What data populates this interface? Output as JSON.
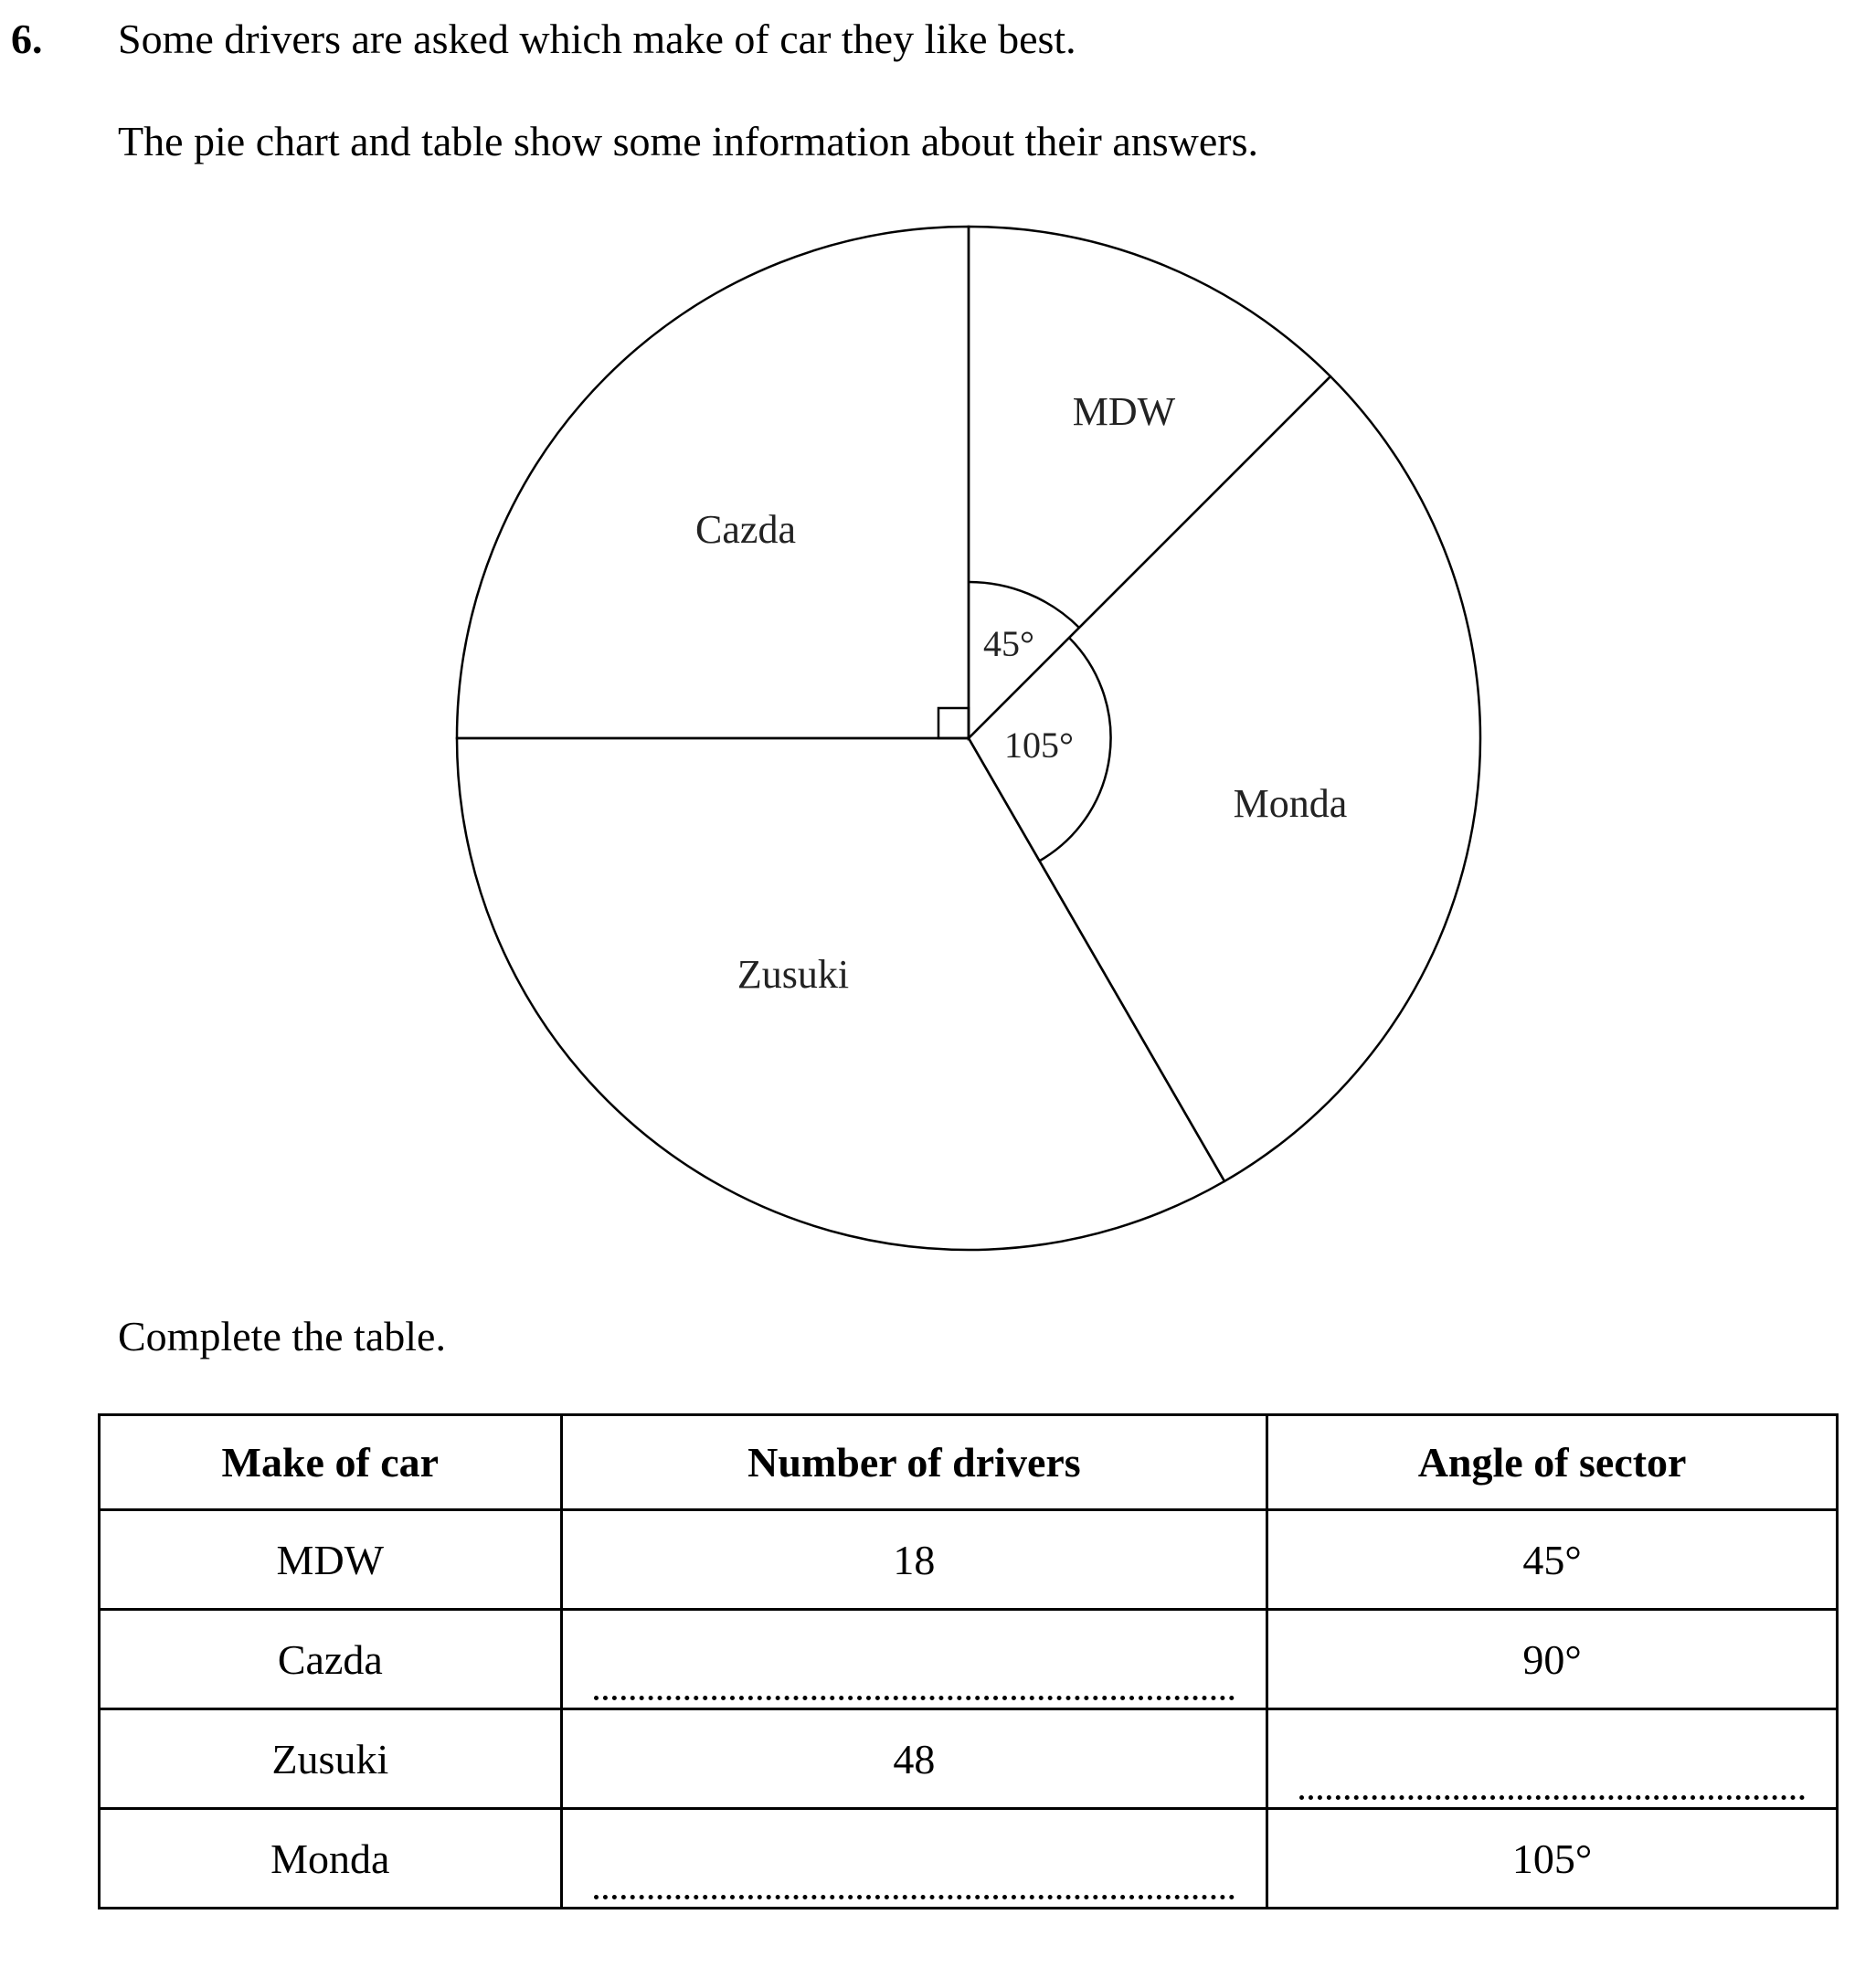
{
  "question": {
    "number": "6.",
    "intro": "Some drivers are asked which make of car they like best.",
    "description": "The pie chart and table show some information about their answers.",
    "instruction": "Complete the table."
  },
  "chart_data": {
    "type": "pie",
    "start": "top",
    "direction": "clockwise",
    "slices": [
      {
        "label": "MDW",
        "angle": 45
      },
      {
        "label": "Monda",
        "angle": 105
      },
      {
        "label": "Zusuki",
        "angle": 120
      },
      {
        "label": "Cazda",
        "angle": 90
      }
    ],
    "angle_labels": {
      "mdw": "45°",
      "monda": "105°"
    },
    "right_angle_marker": "Cazda"
  },
  "table": {
    "headers": [
      "Make of car",
      "Number of drivers",
      "Angle of sector"
    ],
    "rows": [
      {
        "make": "MDW",
        "drivers": "18",
        "angle": "45°"
      },
      {
        "make": "Cazda",
        "drivers": "",
        "angle": "90°"
      },
      {
        "make": "Zusuki",
        "drivers": "48",
        "angle": ""
      },
      {
        "make": "Monda",
        "drivers": "",
        "angle": "105°"
      }
    ]
  }
}
